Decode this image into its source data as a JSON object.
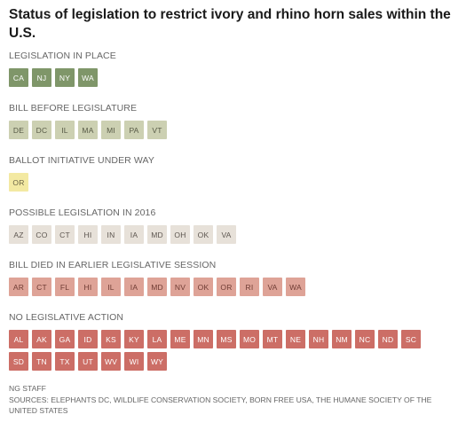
{
  "title": "Status of legislation to restrict ivory and rhino horn sales within the U.S.",
  "categories": [
    {
      "label": "LEGISLATION IN PLACE",
      "states": [
        "CA",
        "NJ",
        "NY",
        "WA"
      ],
      "color": "#7f9669"
    },
    {
      "label": "BILL BEFORE LEGISLATURE",
      "states": [
        "DE",
        "DC",
        "IL",
        "MA",
        "MI",
        "PA",
        "VT"
      ],
      "color": "#ccd0b2"
    },
    {
      "label": "BALLOT INITIATIVE UNDER WAY",
      "states": [
        "OR"
      ],
      "color": "#f3e9a2"
    },
    {
      "label": "POSSIBLE LEGISLATION IN 2016",
      "states": [
        "AZ",
        "CO",
        "CT",
        "HI",
        "IN",
        "IA",
        "MD",
        "OH",
        "OK",
        "VA"
      ],
      "color": "#e7e1d9"
    },
    {
      "label": "BILL DIED IN EARLIER LEGISLATIVE SESSION",
      "states": [
        "AR",
        "CT",
        "FL",
        "HI",
        "IL",
        "IA",
        "MD",
        "NV",
        "OK",
        "OR",
        "RI",
        "VA",
        "WA"
      ],
      "color": "#dea397"
    },
    {
      "label": "NO LEGISLATIVE ACTION",
      "states": [
        "AL",
        "AK",
        "GA",
        "ID",
        "KS",
        "KY",
        "LA",
        "ME",
        "MN",
        "MS",
        "MO",
        "MT",
        "NE",
        "NH",
        "NM",
        "NC",
        "ND",
        "SC",
        "SD",
        "TN",
        "TX",
        "UT",
        "WV",
        "WI",
        "WY"
      ],
      "color": "#cc6e66"
    }
  ],
  "credit": "NG STAFF",
  "sources": "SOURCES: ELEPHANTS DC, WILDLIFE CONSERVATION SOCIETY, BORN FREE USA, THE HUMANE SOCIETY OF THE UNITED STATES"
}
